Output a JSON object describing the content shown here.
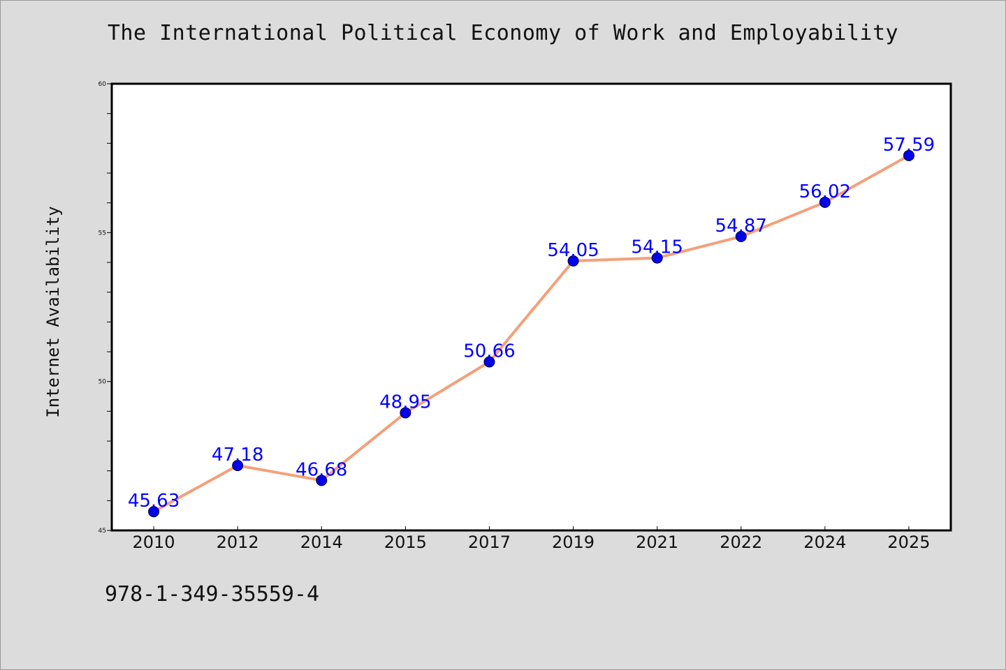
{
  "chart_data": {
    "type": "line",
    "title": "The International Political Economy of Work and Employability",
    "ylabel": "Internet Availability",
    "xlabel": "",
    "categories": [
      "2010",
      "2012",
      "2014",
      "2015",
      "2017",
      "2019",
      "2021",
      "2022",
      "2024",
      "2025"
    ],
    "values": [
      45.63,
      47.18,
      46.68,
      48.95,
      50.66,
      54.05,
      54.15,
      54.87,
      56.02,
      57.59
    ],
    "data_labels": [
      "45.63",
      "47.18",
      "46.68",
      "48.95",
      "50.66",
      "54.05",
      "54.15",
      "54.87",
      "56.02",
      "57.59"
    ],
    "ylim": [
      45,
      60
    ],
    "yticks": [
      "45",
      "50",
      "55",
      "60"
    ],
    "grid": false,
    "colors": {
      "line": "#f4a07a",
      "marker": "#0000ee",
      "label": "#0000ff",
      "background": "#dcdcdc",
      "plot_background": "#ffffff"
    }
  },
  "footer": {
    "text": "978-1-349-35559-4"
  }
}
